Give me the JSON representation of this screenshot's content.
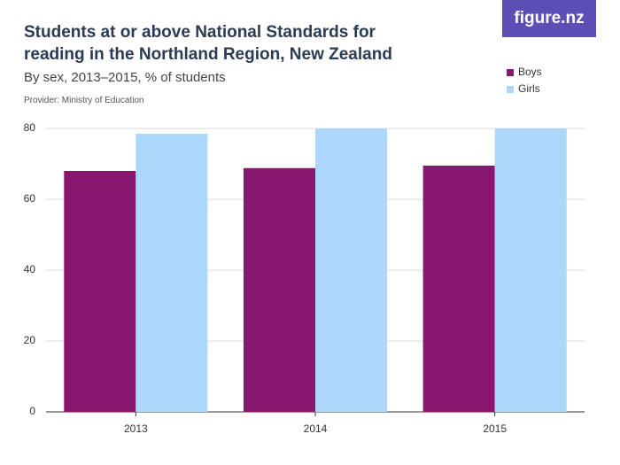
{
  "chart_data": {
    "type": "bar",
    "title": "Students at or above National Standards for reading in the Northland Region, New Zealand",
    "subtitle": "By sex, 2013–2015, % of students",
    "source": "Provider: Ministry of Education",
    "logo": "figure.nz",
    "categories": [
      "2013",
      "2014",
      "2015"
    ],
    "series": [
      {
        "name": "Boys",
        "color": "#8a176f",
        "values": [
          68,
          68.8,
          69.5
        ]
      },
      {
        "name": "Girls",
        "color": "#acd6fa",
        "values": [
          78.5,
          80,
          80
        ]
      }
    ],
    "ylim": [
      0,
      80
    ],
    "yticks": [
      0,
      20,
      40,
      60,
      80
    ],
    "grid": true,
    "legend": "top-right"
  }
}
